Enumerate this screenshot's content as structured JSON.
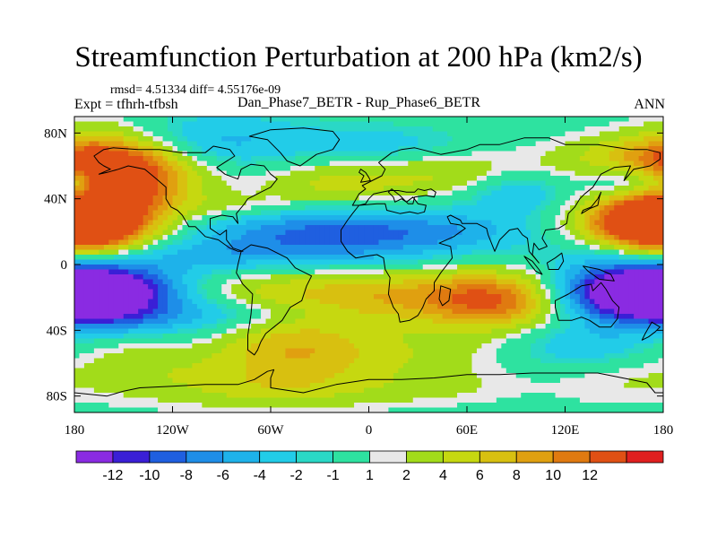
{
  "title": "Streamfunction Perturbation at 200 hPa (km2/s)",
  "stats": "rmsd= 4.51334 diff= 4.55176e-09",
  "experiment": "Expt = tfhrh-tfbsh",
  "cases": "Dan_Phase7_BETR - Rup_Phase6_BETR",
  "season": "ANN",
  "chart_data": {
    "type": "heatmap",
    "projection": "cylindrical-equidistant",
    "x_range": [
      -180,
      180
    ],
    "y_range": [
      -90,
      90
    ],
    "x_ticks": [
      {
        "value": -180,
        "label": "180"
      },
      {
        "value": -120,
        "label": "120W"
      },
      {
        "value": -60,
        "label": "60W"
      },
      {
        "value": 0,
        "label": "0"
      },
      {
        "value": 60,
        "label": "60E"
      },
      {
        "value": 120,
        "label": "120E"
      },
      {
        "value": 180,
        "label": "180"
      }
    ],
    "y_ticks": [
      {
        "value": 80,
        "label": "80N"
      },
      {
        "value": 40,
        "label": "40N"
      },
      {
        "value": 0,
        "label": "0"
      },
      {
        "value": -40,
        "label": "40S"
      },
      {
        "value": -80,
        "label": "80S"
      }
    ],
    "colorbar": {
      "colors": [
        "#8a2be2",
        "#3a1fd6",
        "#1f5fe0",
        "#1e8ee8",
        "#1eb2ea",
        "#22cce8",
        "#2ad8c6",
        "#2ee2a0",
        "#e8e8e8",
        "#a2dc1a",
        "#c6d810",
        "#d8c010",
        "#e0a010",
        "#e07a10",
        "#e05014",
        "#e01f1f"
      ],
      "levels": [
        "-12",
        "-10",
        "-8",
        "-6",
        "-4",
        "-2",
        "-1",
        "1",
        "2",
        "4",
        "6",
        "8",
        "10",
        "12"
      ],
      "level_values": [
        -12,
        -10,
        -8,
        -6,
        -4,
        -2,
        -1,
        1,
        2,
        4,
        6,
        8,
        10,
        12
      ]
    },
    "features": [
      {
        "lon": -148,
        "lat": 55,
        "rx": 30,
        "ry": 16,
        "amp": 14
      },
      {
        "lon": -172,
        "lat": 62,
        "rx": 25,
        "ry": 14,
        "amp": 7
      },
      {
        "lon": -100,
        "lat": 75,
        "rx": 45,
        "ry": 12,
        "amp": -5
      },
      {
        "lon": -175,
        "lat": 45,
        "rx": 10,
        "ry": 9,
        "amp": -5
      },
      {
        "lon": -180,
        "lat": 25,
        "rx": 30,
        "ry": 13,
        "amp": 13
      },
      {
        "lon": 180,
        "lat": 25,
        "rx": 30,
        "ry": 13,
        "amp": 13
      },
      {
        "lon": -180,
        "lat": -17,
        "rx": 42,
        "ry": 12,
        "amp": -13
      },
      {
        "lon": 180,
        "lat": -17,
        "rx": 42,
        "ry": 12,
        "amp": -13
      },
      {
        "lon": -105,
        "lat": 5,
        "rx": 45,
        "ry": 7,
        "amp": -3
      },
      {
        "lon": -85,
        "lat": -30,
        "rx": 40,
        "ry": 6,
        "amp": -3
      },
      {
        "lon": -25,
        "lat": 18,
        "rx": 55,
        "ry": 13,
        "amp": -9
      },
      {
        "lon": -20,
        "lat": 48,
        "rx": 35,
        "ry": 10,
        "amp": 5
      },
      {
        "lon": -30,
        "lat": -15,
        "rx": 80,
        "ry": 10,
        "amp": 5
      },
      {
        "lon": 20,
        "lat": -25,
        "rx": 40,
        "ry": 12,
        "amp": 4
      },
      {
        "lon": 80,
        "lat": -22,
        "rx": 30,
        "ry": 12,
        "amp": 11
      },
      {
        "lon": 55,
        "lat": 20,
        "rx": 35,
        "ry": 8,
        "amp": -3
      },
      {
        "lon": 90,
        "lat": 45,
        "rx": 22,
        "ry": 10,
        "amp": -5
      },
      {
        "lon": 60,
        "lat": 55,
        "rx": 40,
        "ry": 10,
        "amp": 4
      },
      {
        "lon": -50,
        "lat": -50,
        "rx": 35,
        "ry": 15,
        "amp": 7
      },
      {
        "lon": 20,
        "lat": -55,
        "rx": 45,
        "ry": 10,
        "amp": 3
      },
      {
        "lon": -140,
        "lat": -60,
        "rx": 30,
        "ry": 14,
        "amp": 3
      },
      {
        "lon": -110,
        "lat": -40,
        "rx": 35,
        "ry": 8,
        "amp": -2
      },
      {
        "lon": -160,
        "lat": -35,
        "rx": 25,
        "ry": 6,
        "amp": -2
      },
      {
        "lon": 130,
        "lat": -50,
        "rx": 30,
        "ry": 10,
        "amp": -4
      },
      {
        "lon": 150,
        "lat": -70,
        "rx": 30,
        "ry": 12,
        "amp": 2
      },
      {
        "lon": 150,
        "lat": 8,
        "rx": 30,
        "ry": 8,
        "amp": -3
      },
      {
        "lon": 165,
        "lat": 50,
        "rx": 20,
        "ry": 8,
        "amp": -8
      },
      {
        "lon": 150,
        "lat": 65,
        "rx": 30,
        "ry": 10,
        "amp": 4
      },
      {
        "lon": 10,
        "lat": 73,
        "rx": 35,
        "ry": 8,
        "amp": -3
      },
      {
        "lon": -80,
        "lat": 35,
        "rx": 30,
        "ry": 6,
        "amp": 3
      },
      {
        "lon": -60,
        "lat": -75,
        "rx": 50,
        "ry": 10,
        "amp": 4
      },
      {
        "lon": 40,
        "lat": -75,
        "rx": 40,
        "ry": 8,
        "amp": 2
      }
    ]
  }
}
